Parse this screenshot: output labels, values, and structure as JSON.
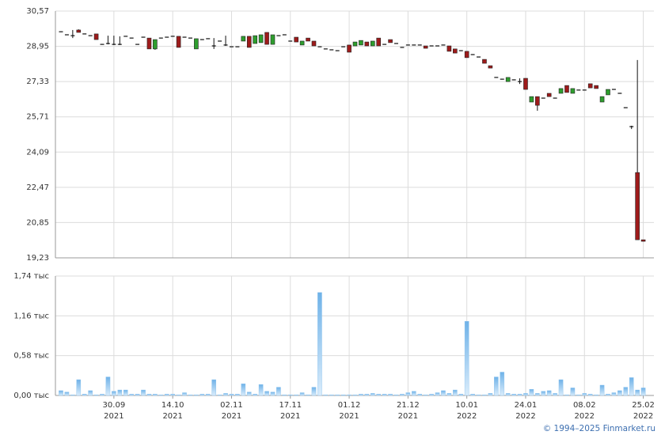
{
  "chart_data": [
    {
      "type": "candlestick",
      "up_color": "#2e9e2e",
      "down_color": "#9e1b1b",
      "ylim": [
        19.23,
        30.57
      ],
      "yticks": [
        {
          "value": 30.57,
          "label": "30,57"
        },
        {
          "value": 28.95,
          "label": "28,95"
        },
        {
          "value": 27.33,
          "label": "27,33"
        },
        {
          "value": 25.71,
          "label": "25,71"
        },
        {
          "value": 24.09,
          "label": "24,09"
        },
        {
          "value": 22.47,
          "label": "22,47"
        },
        {
          "value": 20.85,
          "label": "20,85"
        },
        {
          "value": 19.23,
          "label": "19,23"
        }
      ],
      "grid": true,
      "open": [
        29.62,
        29.48,
        29.44,
        29.7,
        29.52,
        29.44,
        29.52,
        29.04,
        29.08,
        29.04,
        29.04,
        29.41,
        29.33,
        29.04,
        29.37,
        29.33,
        28.83,
        29.33,
        29.37,
        29.41,
        29.41,
        29.37,
        29.33,
        28.83,
        29.26,
        29.3,
        28.97,
        29.19,
        29.01,
        28.93,
        28.93,
        29.19,
        29.41,
        29.08,
        29.12,
        29.59,
        29.04,
        29.44,
        29.48,
        29.19,
        29.37,
        29.01,
        29.33,
        29.19,
        28.93,
        28.83,
        28.79,
        28.75,
        28.93,
        29.01,
        28.97,
        29.01,
        29.15,
        28.97,
        29.33,
        29.04,
        29.26,
        29.08,
        28.9,
        29.01,
        29.01,
        29.01,
        28.97,
        28.97,
        28.97,
        29.01,
        28.97,
        28.83,
        28.75,
        28.72,
        28.57,
        28.46,
        28.35,
        28.06,
        27.52,
        27.44,
        27.33,
        27.41,
        27.33,
        27.48,
        26.39,
        26.64,
        26.57,
        26.79,
        26.57,
        26.79,
        27.15,
        26.79,
        26.94,
        26.94,
        27.23,
        27.15,
        26.39,
        26.72,
        26.97,
        26.79,
        26.13,
        25.26,
        23.15,
        20.06
      ],
      "high": [
        29.62,
        29.48,
        29.7,
        29.73,
        29.52,
        29.44,
        29.52,
        29.04,
        29.44,
        29.44,
        29.41,
        29.41,
        29.33,
        29.04,
        29.37,
        29.33,
        29.26,
        29.33,
        29.37,
        29.41,
        29.41,
        29.37,
        29.33,
        29.3,
        29.26,
        29.3,
        29.33,
        29.19,
        29.44,
        28.93,
        28.93,
        29.41,
        29.41,
        29.44,
        29.48,
        29.59,
        29.48,
        29.44,
        29.48,
        29.19,
        29.37,
        29.19,
        29.33,
        29.19,
        28.93,
        28.83,
        28.79,
        28.75,
        28.93,
        29.01,
        29.15,
        29.22,
        29.15,
        29.19,
        29.33,
        29.04,
        29.26,
        29.08,
        28.9,
        29.01,
        29.01,
        29.01,
        28.97,
        28.97,
        28.97,
        29.01,
        28.97,
        28.83,
        28.75,
        28.72,
        28.57,
        28.46,
        28.35,
        28.06,
        27.52,
        27.44,
        27.52,
        27.41,
        27.48,
        27.48,
        26.64,
        26.64,
        26.57,
        26.79,
        26.57,
        27.01,
        27.15,
        27.01,
        26.94,
        26.94,
        27.23,
        27.15,
        26.64,
        26.97,
        26.97,
        26.79,
        26.13,
        25.3,
        28.32,
        20.06
      ],
      "low": [
        29.62,
        29.48,
        29.33,
        29.59,
        29.52,
        29.44,
        29.26,
        29.04,
        29.04,
        29.01,
        29.01,
        29.41,
        29.33,
        29.04,
        29.37,
        28.83,
        28.79,
        29.33,
        29.37,
        29.41,
        28.9,
        29.37,
        29.33,
        28.83,
        29.26,
        29.3,
        28.83,
        29.19,
        28.97,
        28.93,
        28.93,
        29.19,
        28.9,
        29.08,
        29.12,
        29.04,
        29.04,
        29.44,
        29.48,
        29.19,
        29.15,
        29.01,
        29.19,
        28.97,
        28.93,
        28.83,
        28.79,
        28.75,
        28.93,
        28.68,
        28.97,
        29.01,
        28.97,
        28.97,
        28.97,
        29.04,
        29.12,
        29.08,
        28.9,
        29.01,
        29.01,
        29.01,
        28.86,
        28.97,
        28.97,
        29.01,
        28.72,
        28.64,
        28.75,
        28.43,
        28.57,
        28.46,
        28.17,
        27.95,
        27.52,
        27.44,
        27.33,
        27.41,
        27.22,
        26.97,
        26.39,
        25.99,
        26.57,
        26.64,
        26.57,
        26.79,
        26.83,
        26.79,
        26.94,
        26.94,
        27.04,
        27.01,
        26.39,
        26.72,
        26.97,
        26.79,
        26.13,
        25.15,
        20.06,
        19.99
      ],
      "close": [
        29.62,
        29.48,
        29.48,
        29.59,
        29.52,
        29.44,
        29.26,
        29.04,
        29.08,
        29.04,
        29.04,
        29.41,
        29.33,
        29.04,
        29.37,
        28.83,
        29.26,
        29.33,
        29.37,
        29.41,
        28.9,
        29.37,
        29.33,
        29.3,
        29.26,
        29.3,
        28.97,
        29.19,
        29.04,
        28.93,
        28.93,
        29.41,
        28.9,
        29.44,
        29.48,
        29.04,
        29.48,
        29.44,
        29.48,
        29.19,
        29.15,
        29.19,
        29.19,
        28.97,
        28.93,
        28.83,
        28.79,
        28.75,
        28.93,
        28.68,
        29.15,
        29.22,
        28.97,
        29.19,
        28.97,
        29.04,
        29.12,
        29.08,
        28.9,
        29.01,
        29.01,
        29.01,
        28.86,
        28.97,
        28.97,
        29.01,
        28.72,
        28.64,
        28.75,
        28.43,
        28.57,
        28.46,
        28.17,
        27.95,
        27.52,
        27.44,
        27.52,
        27.41,
        27.3,
        26.97,
        26.64,
        26.24,
        26.57,
        26.64,
        26.57,
        27.01,
        26.83,
        27.01,
        26.94,
        26.94,
        27.04,
        27.01,
        26.64,
        26.97,
        26.97,
        26.79,
        26.13,
        25.22,
        20.06,
        19.99
      ]
    },
    {
      "type": "bar",
      "color": "#8cc3ee",
      "categories": [
        null,
        null,
        null,
        null,
        null,
        null,
        null,
        null,
        null,
        "30.09.2021",
        null,
        null,
        null,
        null,
        null,
        null,
        null,
        null,
        null,
        "14.10.2021",
        null,
        null,
        null,
        null,
        null,
        null,
        null,
        null,
        null,
        "02.11.2021",
        null,
        null,
        null,
        null,
        null,
        null,
        null,
        null,
        null,
        "17.11.2021",
        null,
        null,
        null,
        null,
        null,
        null,
        null,
        null,
        null,
        "01.12.2021",
        null,
        null,
        null,
        null,
        null,
        null,
        null,
        null,
        null,
        "21.12.2021",
        null,
        null,
        null,
        null,
        null,
        null,
        null,
        null,
        null,
        "10.01.2022",
        null,
        null,
        null,
        null,
        null,
        null,
        null,
        null,
        null,
        "24.01.2022",
        null,
        null,
        null,
        null,
        null,
        null,
        null,
        null,
        null,
        "08.02.2022",
        null,
        null,
        null,
        null,
        null,
        null,
        null,
        null,
        null,
        "25.02.2022"
      ],
      "xticks": [
        {
          "value": "30.09.2021",
          "label": [
            "30.09",
            "2021"
          ]
        },
        {
          "value": "14.10.2021",
          "label": [
            "14.10",
            "2021"
          ]
        },
        {
          "value": "02.11.2021",
          "label": [
            "02.11",
            "2021"
          ]
        },
        {
          "value": "17.11.2021",
          "label": [
            "17.11",
            "2021"
          ]
        },
        {
          "value": "01.12.2021",
          "label": [
            "01.12",
            "2021"
          ]
        },
        {
          "value": "21.12.2021",
          "label": [
            "21.12",
            "2021"
          ]
        },
        {
          "value": "10.01.2022",
          "label": [
            "10.01",
            "2022"
          ]
        },
        {
          "value": "24.01.2022",
          "label": [
            "24.01",
            "2022"
          ]
        },
        {
          "value": "08.02.2022",
          "label": [
            "08.02",
            "2022"
          ]
        },
        {
          "value": "25.02.2022",
          "label": [
            "25.02",
            "2022"
          ]
        }
      ],
      "values": [
        0.07,
        0.05,
        0.01,
        0.23,
        0.02,
        0.07,
        0.01,
        0.02,
        0.27,
        0.06,
        0.08,
        0.08,
        0.02,
        0.02,
        0.08,
        0.02,
        0.02,
        0.01,
        0.02,
        0.02,
        0.01,
        0.04,
        0.01,
        0.01,
        0.02,
        0.02,
        0.23,
        0.01,
        0.03,
        0.02,
        0.02,
        0.17,
        0.05,
        0.02,
        0.16,
        0.06,
        0.05,
        0.12,
        0.01,
        0.01,
        0.01,
        0.04,
        0.01,
        0.12,
        1.5,
        0.01,
        0.01,
        0.01,
        0.01,
        0.01,
        0.01,
        0.02,
        0.02,
        0.03,
        0.02,
        0.02,
        0.02,
        0.01,
        0.02,
        0.04,
        0.06,
        0.02,
        0.01,
        0.02,
        0.04,
        0.07,
        0.03,
        0.08,
        0.02,
        1.08,
        0.02,
        0.01,
        0.01,
        0.03,
        0.27,
        0.34,
        0.03,
        0.02,
        0.02,
        0.03,
        0.09,
        0.03,
        0.06,
        0.07,
        0.03,
        0.23,
        0.01,
        0.11,
        0.01,
        0.03,
        0.02,
        0.01,
        0.15,
        0.02,
        0.04,
        0.07,
        0.12,
        0.26,
        0.08,
        0.11
      ],
      "ylim": [
        0,
        1.74
      ],
      "yticks": [
        {
          "value": 1.74,
          "label": "1,74 тыс"
        },
        {
          "value": 1.16,
          "label": "1,16 тыс"
        },
        {
          "value": 0.58,
          "label": "0,58 тыс"
        },
        {
          "value": 0,
          "label": "0,00 тыс"
        }
      ],
      "grid": true
    }
  ],
  "footer": {
    "copyright": "© 1994–2025 Finmarket.ru"
  }
}
